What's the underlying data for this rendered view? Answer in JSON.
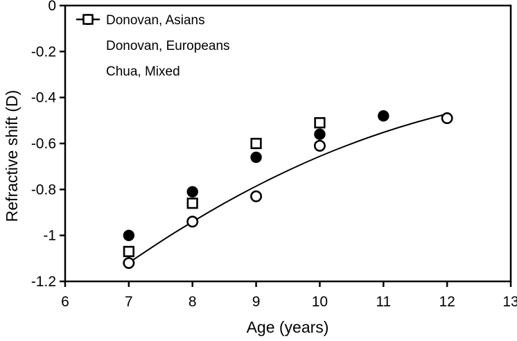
{
  "chart_data": {
    "type": "scatter",
    "title": "",
    "xlabel": "Age (years)",
    "ylabel": "Refractive shift (D)",
    "xlim": [
      6,
      13
    ],
    "ylim": [
      -1.2,
      0
    ],
    "grid": false,
    "frame": "full-box",
    "color": "#000000",
    "background": "#ffffff",
    "x_ticks": [
      {
        "value": 6,
        "label": "6"
      },
      {
        "value": 7,
        "label": "7"
      },
      {
        "value": 8,
        "label": "8"
      },
      {
        "value": 9,
        "label": "9"
      },
      {
        "value": 10,
        "label": "10"
      },
      {
        "value": 11,
        "label": "11"
      },
      {
        "value": 12,
        "label": "12"
      },
      {
        "value": 13,
        "label": "13"
      }
    ],
    "y_ticks": [
      {
        "value": 0,
        "label": "0"
      },
      {
        "value": -0.2,
        "label": "-0.2"
      },
      {
        "value": -0.4,
        "label": "-0.4"
      },
      {
        "value": -0.6,
        "label": "-0.6"
      },
      {
        "value": -0.8,
        "label": "-0.8"
      },
      {
        "value": -1,
        "label": "-1"
      },
      {
        "value": -1.2,
        "label": "-1.2"
      }
    ],
    "series": [
      {
        "name": "Donovan, Asians",
        "marker": "open-circle",
        "points": [
          [
            7,
            -1.12
          ],
          [
            8,
            -0.94
          ],
          [
            9,
            -0.83
          ],
          [
            10,
            -0.61
          ],
          [
            12,
            -0.49
          ]
        ]
      },
      {
        "name": "Donovan, Europeans",
        "marker": "filled-circle",
        "points": [
          [
            7,
            -1.0
          ],
          [
            8,
            -0.81
          ],
          [
            9,
            -0.66
          ],
          [
            10,
            -0.56
          ],
          [
            11,
            -0.48
          ]
        ]
      },
      {
        "name": "Chua, Mixed",
        "marker": "open-square",
        "points": [
          [
            7,
            -1.07
          ],
          [
            8,
            -0.86
          ],
          [
            9,
            -0.6
          ],
          [
            10,
            -0.51
          ]
        ]
      }
    ],
    "trend_line": {
      "fitted_to": "Donovan, Asians",
      "points": [
        [
          7,
          -1.119
        ],
        [
          7.5,
          -1.026
        ],
        [
          8,
          -0.94
        ],
        [
          8.5,
          -0.859
        ],
        [
          9,
          -0.785
        ],
        [
          9.5,
          -0.717
        ],
        [
          10,
          -0.655
        ],
        [
          10.5,
          -0.6
        ],
        [
          11,
          -0.551
        ],
        [
          11.5,
          -0.508
        ],
        [
          12,
          -0.471
        ]
      ]
    },
    "legend_position": "top-left-inside"
  },
  "legend": {
    "entries": [
      {
        "label": "Donovan, Asians",
        "marker": "open-circle-line"
      },
      {
        "label": "Donovan, Europeans",
        "marker": "filled-circle"
      },
      {
        "label": "Chua, Mixed",
        "marker": "open-square"
      }
    ]
  }
}
